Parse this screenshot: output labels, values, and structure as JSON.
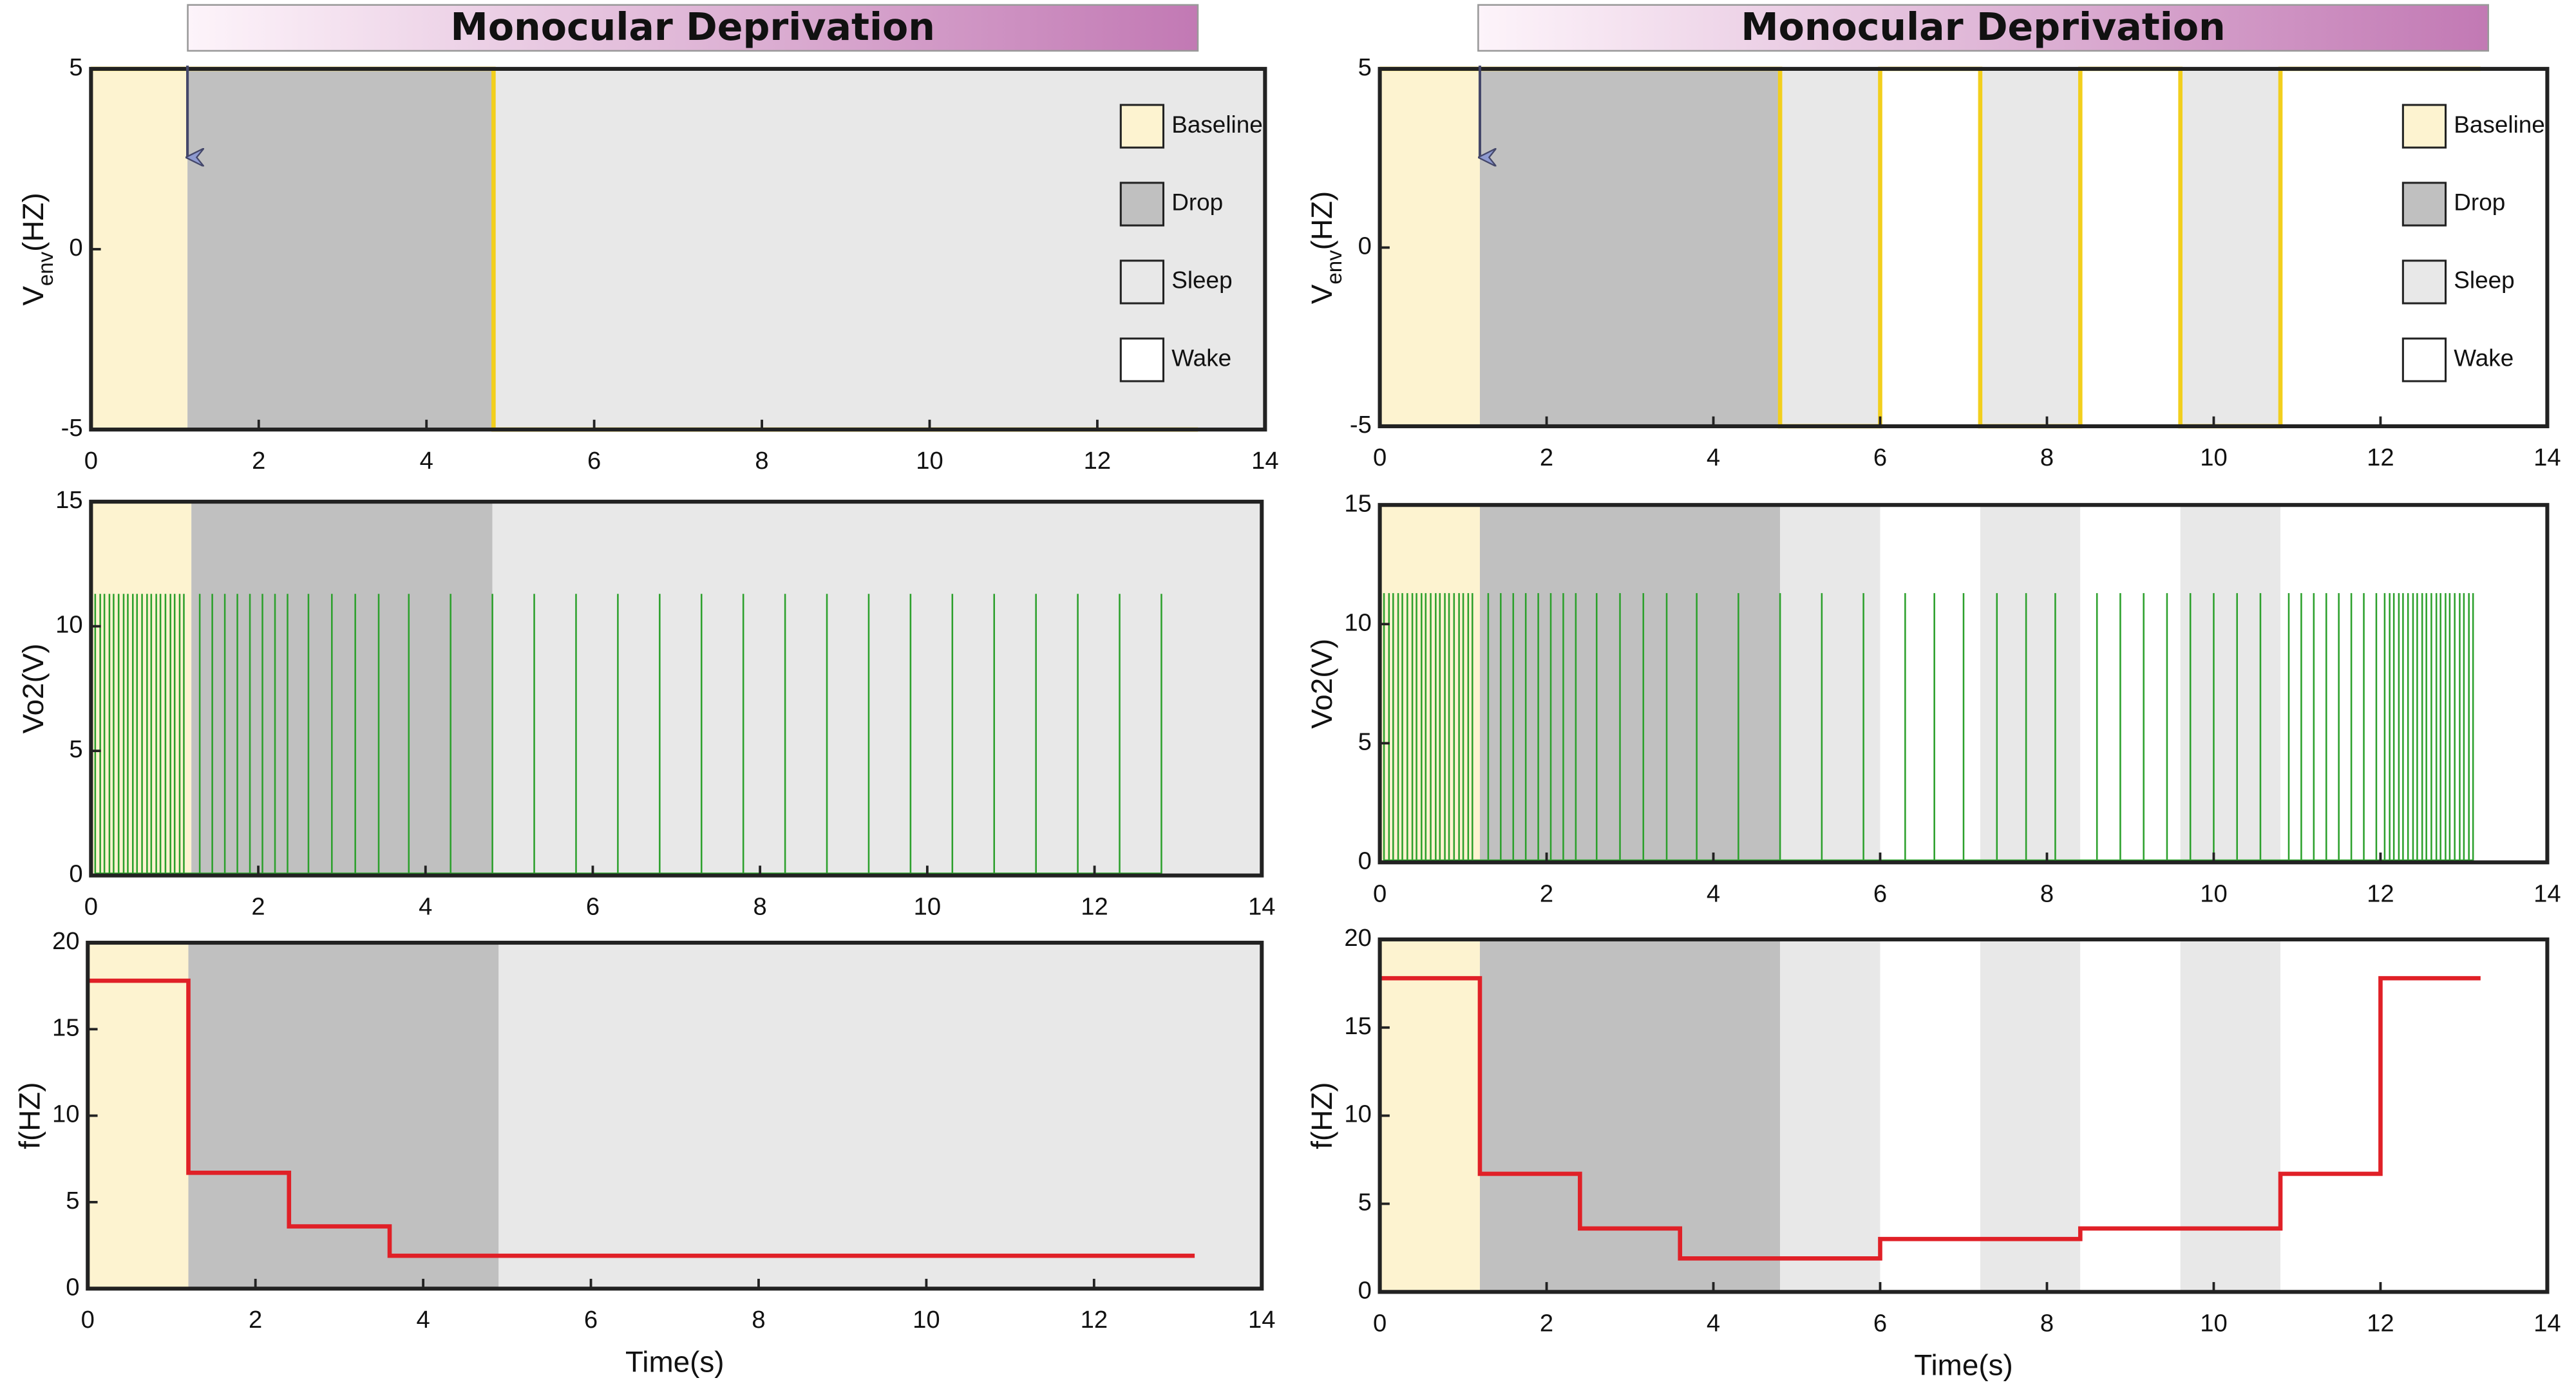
{
  "region_colors": {
    "Baseline": "#fdf3d0",
    "Drop": "#c0c0c0",
    "Sleep": "#e8e8e8",
    "Wake": "#ffffff"
  },
  "chart_data": [
    {
      "type": "line",
      "title": "Monocular Deprivation",
      "ylabel": [
        "V",
        "env",
        "(HZ)"
      ],
      "legend": [
        "Baseline",
        "Drop",
        "Sleep",
        "Wake"
      ],
      "regions": [
        {
          "name": "Baseline",
          "x": [
            0,
            1.15
          ]
        },
        {
          "name": "Drop",
          "x": [
            1.15,
            4.8
          ]
        },
        {
          "name": "Sleep",
          "x": [
            4.8,
            14
          ]
        }
      ],
      "series": [
        {
          "color": "#f2cf1d",
          "x": [
            0,
            4.8,
            4.8,
            13.2
          ],
          "values": [
            5,
            5,
            -5,
            -5
          ]
        }
      ],
      "xlim": [
        0,
        14
      ],
      "xticks": [
        0,
        2,
        4,
        6,
        8,
        10,
        12,
        14
      ],
      "ylim": [
        -5,
        5
      ],
      "yticks": [
        -5,
        0,
        5
      ]
    },
    {
      "type": "spike",
      "ylabel": [
        "Vo2(V)"
      ],
      "regions": [
        {
          "name": "Baseline",
          "x": [
            0,
            1.2
          ]
        },
        {
          "name": "Drop",
          "x": [
            1.2,
            4.8
          ]
        },
        {
          "name": "Sleep",
          "x": [
            4.8,
            14
          ]
        }
      ],
      "color": "#2ca02c",
      "spike_height": 11.3,
      "x": [
        0.05,
        0.11,
        0.16,
        0.22,
        0.27,
        0.33,
        0.39,
        0.44,
        0.5,
        0.55,
        0.61,
        0.67,
        0.72,
        0.78,
        0.83,
        0.89,
        0.95,
        1.0,
        1.06,
        1.11,
        1.3,
        1.45,
        1.6,
        1.75,
        1.9,
        2.05,
        2.2,
        2.35,
        2.6,
        2.88,
        3.16,
        3.44,
        3.8,
        4.3,
        4.8,
        5.3,
        5.8,
        6.3,
        6.8,
        7.3,
        7.8,
        8.3,
        8.8,
        9.3,
        9.8,
        10.3,
        10.8,
        11.3,
        11.8,
        12.3,
        12.8
      ],
      "xlim": [
        0,
        14
      ],
      "xticks": [
        0,
        2,
        4,
        6,
        8,
        10,
        12,
        14
      ],
      "ylim": [
        0,
        15
      ],
      "yticks": [
        0,
        5,
        10,
        15
      ]
    },
    {
      "type": "line",
      "ylabel": [
        "f(HZ)"
      ],
      "xlabel": "Time(s)",
      "regions": [
        {
          "name": "Baseline",
          "x": [
            0,
            1.2
          ]
        },
        {
          "name": "Drop",
          "x": [
            1.2,
            4.9
          ]
        },
        {
          "name": "Sleep",
          "x": [
            4.9,
            14
          ]
        }
      ],
      "series": [
        {
          "color": "#e02027",
          "x": [
            0,
            1.2,
            1.2,
            2.4,
            2.4,
            3.6,
            3.6,
            13.2
          ],
          "values": [
            17.8,
            17.8,
            6.7,
            6.7,
            3.6,
            3.6,
            1.9,
            1.9
          ]
        }
      ],
      "xlim": [
        0,
        14
      ],
      "xticks": [
        0,
        2,
        4,
        6,
        8,
        10,
        12,
        14
      ],
      "ylim": [
        0,
        20
      ],
      "yticks": [
        0,
        5,
        10,
        15,
        20
      ]
    },
    {
      "type": "line",
      "title": "Monocular Deprivation",
      "ylabel": [
        "V",
        "env",
        "(HZ)"
      ],
      "legend": [
        "Baseline",
        "Drop",
        "Sleep",
        "Wake"
      ],
      "regions": [
        {
          "name": "Baseline",
          "x": [
            0,
            1.2
          ]
        },
        {
          "name": "Drop",
          "x": [
            1.2,
            4.8
          ]
        },
        {
          "name": "Sleep",
          "x": [
            4.8,
            6
          ]
        },
        {
          "name": "Wake",
          "x": [
            6,
            7.2
          ]
        },
        {
          "name": "Sleep",
          "x": [
            7.2,
            8.4
          ]
        },
        {
          "name": "Wake",
          "x": [
            8.4,
            9.6
          ]
        },
        {
          "name": "Sleep",
          "x": [
            9.6,
            10.8
          ]
        },
        {
          "name": "Wake",
          "x": [
            10.8,
            14
          ]
        }
      ],
      "series": [
        {
          "color": "#f2cf1d",
          "x": [
            0,
            4.8,
            4.8,
            6,
            6,
            7.2,
            7.2,
            8.4,
            8.4,
            9.6,
            9.6,
            10.8,
            10.8,
            13.2
          ],
          "values": [
            5,
            5,
            -5,
            -5,
            5,
            5,
            -5,
            -5,
            5,
            5,
            -5,
            -5,
            5,
            5
          ]
        }
      ],
      "xlim": [
        0,
        14
      ],
      "xticks": [
        0,
        2,
        4,
        6,
        8,
        10,
        12,
        14
      ],
      "ylim": [
        -5,
        5
      ],
      "yticks": [
        -5,
        0,
        5
      ]
    },
    {
      "type": "spike",
      "ylabel": [
        "Vo2(V)"
      ],
      "regions": [
        {
          "name": "Baseline",
          "x": [
            0,
            1.2
          ]
        },
        {
          "name": "Drop",
          "x": [
            1.2,
            4.8
          ]
        },
        {
          "name": "Sleep",
          "x": [
            4.8,
            6
          ]
        },
        {
          "name": "Wake",
          "x": [
            6,
            7.2
          ]
        },
        {
          "name": "Sleep",
          "x": [
            7.2,
            8.4
          ]
        },
        {
          "name": "Wake",
          "x": [
            8.4,
            9.6
          ]
        },
        {
          "name": "Sleep",
          "x": [
            9.6,
            10.8
          ]
        },
        {
          "name": "Wake",
          "x": [
            10.8,
            14
          ]
        }
      ],
      "color": "#2ca02c",
      "spike_height": 11.3,
      "x": [
        0.05,
        0.11,
        0.16,
        0.22,
        0.27,
        0.33,
        0.39,
        0.44,
        0.5,
        0.55,
        0.61,
        0.67,
        0.72,
        0.78,
        0.83,
        0.89,
        0.95,
        1.0,
        1.06,
        1.11,
        1.3,
        1.45,
        1.6,
        1.75,
        1.9,
        2.05,
        2.2,
        2.35,
        2.6,
        2.88,
        3.16,
        3.44,
        3.8,
        4.3,
        4.8,
        5.3,
        5.8,
        6.3,
        6.65,
        7.0,
        7.4,
        7.75,
        8.1,
        8.6,
        8.88,
        9.16,
        9.44,
        9.72,
        10.0,
        10.28,
        10.56,
        10.9,
        11.05,
        11.2,
        11.35,
        11.5,
        11.65,
        11.8,
        11.95,
        12.05,
        12.11,
        12.16,
        12.22,
        12.27,
        12.33,
        12.39,
        12.44,
        12.5,
        12.55,
        12.61,
        12.67,
        12.72,
        12.78,
        12.83,
        12.89,
        12.95,
        13.0,
        13.06,
        13.11
      ],
      "xlim": [
        0,
        14
      ],
      "xticks": [
        0,
        2,
        4,
        6,
        8,
        10,
        12,
        14
      ],
      "ylim": [
        0,
        15
      ],
      "yticks": [
        0,
        5,
        10,
        15
      ]
    },
    {
      "type": "line",
      "ylabel": [
        "f(HZ)"
      ],
      "xlabel": "Time(s)",
      "regions": [
        {
          "name": "Baseline",
          "x": [
            0,
            1.2
          ]
        },
        {
          "name": "Drop",
          "x": [
            1.2,
            4.8
          ]
        },
        {
          "name": "Sleep",
          "x": [
            4.8,
            6
          ]
        },
        {
          "name": "Wake",
          "x": [
            6,
            7.2
          ]
        },
        {
          "name": "Sleep",
          "x": [
            7.2,
            8.4
          ]
        },
        {
          "name": "Wake",
          "x": [
            8.4,
            9.6
          ]
        },
        {
          "name": "Sleep",
          "x": [
            9.6,
            10.8
          ]
        },
        {
          "name": "Wake",
          "x": [
            10.8,
            14
          ]
        }
      ],
      "series": [
        {
          "color": "#e02027",
          "x": [
            0,
            1.2,
            1.2,
            2.4,
            2.4,
            3.6,
            3.6,
            6,
            6,
            8.4,
            8.4,
            10.8,
            10.8,
            12,
            12,
            13.2
          ],
          "values": [
            17.8,
            17.8,
            6.7,
            6.7,
            3.6,
            3.6,
            1.9,
            1.9,
            3,
            3,
            3.6,
            3.6,
            6.7,
            6.7,
            17.8,
            17.8
          ]
        }
      ],
      "xlim": [
        0,
        14
      ],
      "xticks": [
        0,
        2,
        4,
        6,
        8,
        10,
        12,
        14
      ],
      "ylim": [
        0,
        20
      ],
      "yticks": [
        0,
        5,
        10,
        15,
        20
      ]
    }
  ]
}
